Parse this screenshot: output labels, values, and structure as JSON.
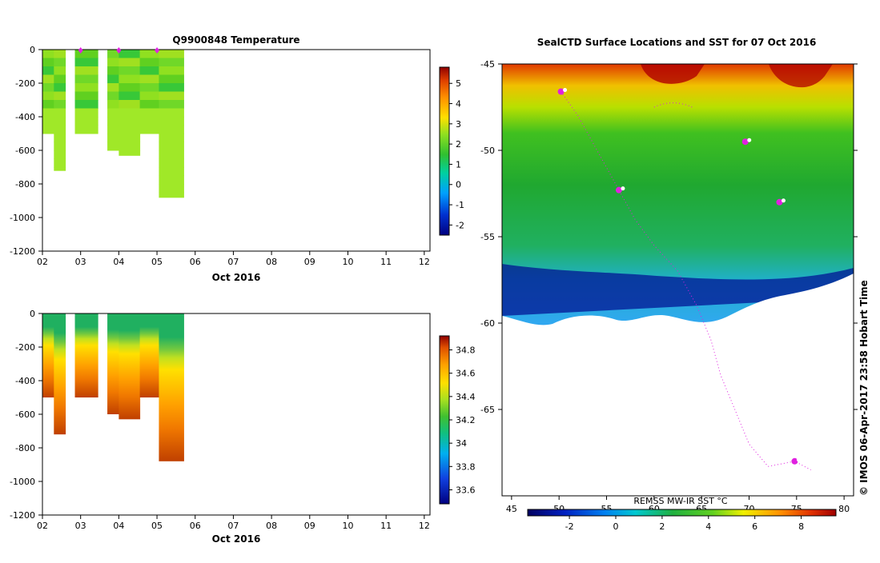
{
  "chart_data": [
    {
      "type": "heatmap",
      "title": "Q9900848  Temperature",
      "x_ticks": [
        "02",
        "03",
        "04",
        "05",
        "06",
        "07",
        "08",
        "09",
        "10",
        "11",
        "12"
      ],
      "y_ticks": [
        "0",
        "-200",
        "-400",
        "-600",
        "-800",
        "-1000",
        "-1200"
      ],
      "xlabel": "Oct 2016",
      "ylim": [
        -1200,
        0
      ],
      "colorbar": {
        "ticks": [
          "5",
          "4",
          "3",
          "2",
          "1",
          "0",
          "-1",
          "-2"
        ],
        "range": [
          -2.5,
          5.8
        ]
      },
      "profiles": [
        {
          "day": 2.0,
          "width": 0.3,
          "depth": 500,
          "value": 2.6
        },
        {
          "day": 2.3,
          "width": 0.3,
          "depth": 720,
          "value": 2.3
        },
        {
          "day": 2.85,
          "width": 0.6,
          "depth": 500,
          "value": 2.5
        },
        {
          "day": 3.7,
          "width": 0.3,
          "depth": 600,
          "value": 2.4
        },
        {
          "day": 4.0,
          "width": 0.55,
          "depth": 630,
          "value": 2.5
        },
        {
          "day": 4.55,
          "width": 0.5,
          "depth": 500,
          "value": 2.3
        },
        {
          "day": 5.05,
          "width": 0.65,
          "depth": 880,
          "value": 2.4
        }
      ],
      "markers": [
        3.0,
        4.0,
        5.0
      ]
    },
    {
      "type": "heatmap",
      "title": "",
      "x_ticks": [
        "02",
        "03",
        "04",
        "05",
        "06",
        "07",
        "08",
        "09",
        "10",
        "11",
        "12"
      ],
      "y_ticks": [
        "0",
        "-200",
        "-400",
        "-600",
        "-800",
        "-1000",
        "-1200"
      ],
      "xlabel": "Oct 2016",
      "ylim": [
        -1200,
        0
      ],
      "colorbar": {
        "ticks": [
          "34.8",
          "34.6",
          "34.4",
          "34.2",
          "34",
          "33.8",
          "33.6"
        ],
        "range": [
          33.48,
          34.92
        ]
      },
      "profiles": [
        {
          "day": 2.0,
          "width": 0.3,
          "depth": 500
        },
        {
          "day": 2.3,
          "width": 0.3,
          "depth": 720
        },
        {
          "day": 2.85,
          "width": 0.6,
          "depth": 500
        },
        {
          "day": 3.7,
          "width": 0.3,
          "depth": 600
        },
        {
          "day": 4.0,
          "width": 0.55,
          "depth": 630
        },
        {
          "day": 4.55,
          "width": 0.5,
          "depth": 500
        },
        {
          "day": 5.05,
          "width": 0.65,
          "depth": 880
        }
      ]
    },
    {
      "type": "heatmap",
      "title": "SealCTD Surface Locations and SST for 07 Oct 2016",
      "lon_ticks": [
        "45",
        "50",
        "55",
        "60",
        "65",
        "70",
        "75",
        "80"
      ],
      "lat_ticks": [
        "-45",
        "-50",
        "-55",
        "-60",
        "-65"
      ],
      "xlim": [
        44,
        81
      ],
      "ylim": [
        -70,
        -45
      ],
      "colorbar_label": "REMSS MW-IR SST °C",
      "colorbar_ticks": [
        "-2",
        "0",
        "2",
        "4",
        "6",
        "8"
      ],
      "colorbar_range": [
        -3.8,
        9.5
      ],
      "ice_edge_lat": -59.7,
      "seal_locations": [
        {
          "lon": 50.2,
          "lat": -46.6
        },
        {
          "lon": 56.3,
          "lat": -52.3
        },
        {
          "lon": 69.6,
          "lat": -49.5
        },
        {
          "lon": 73.2,
          "lat": -53.0
        },
        {
          "lon": 74.8,
          "lat": -68.0
        }
      ]
    }
  ],
  "credit": "© IMOS 06-Apr-2017 23:58 Hobart Time"
}
